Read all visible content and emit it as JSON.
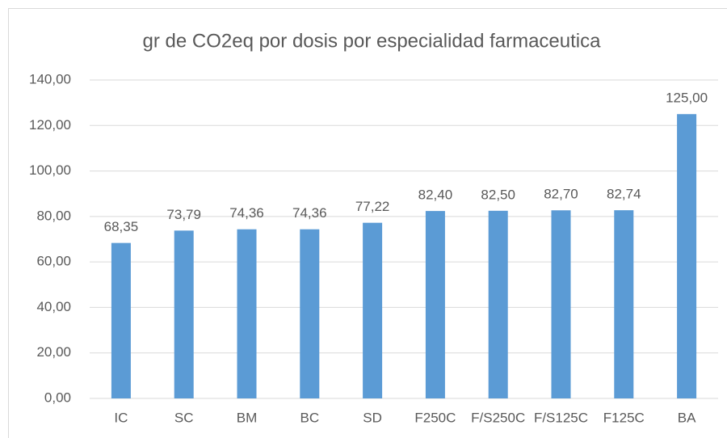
{
  "chart_data": {
    "type": "bar",
    "title": "gr de CO2eq por dosis por especialidad farmaceutica",
    "categories": [
      "IC",
      "SC",
      "BM",
      "BC",
      "SD",
      "F250C",
      "F/S250C",
      "F/S125C",
      "F125C",
      "BA"
    ],
    "values": [
      68.35,
      73.79,
      74.36,
      74.36,
      77.22,
      82.4,
      82.5,
      82.7,
      82.74,
      125.0
    ],
    "value_labels": [
      "68,35",
      "73,79",
      "74,36",
      "74,36",
      "77,22",
      "82,40",
      "82,50",
      "82,70",
      "82,74",
      "125,00"
    ],
    "color": "#5b9bd5",
    "ylim": [
      0,
      140
    ],
    "yticks": [
      {
        "value": 0,
        "label": "0,00"
      },
      {
        "value": 20,
        "label": "20,00"
      },
      {
        "value": 40,
        "label": "40,00"
      },
      {
        "value": 60,
        "label": "60,00"
      },
      {
        "value": 80,
        "label": "80,00"
      },
      {
        "value": 100,
        "label": "100,00"
      },
      {
        "value": 120,
        "label": "120,00"
      },
      {
        "value": 140,
        "label": "140,00"
      }
    ],
    "grid": true
  }
}
